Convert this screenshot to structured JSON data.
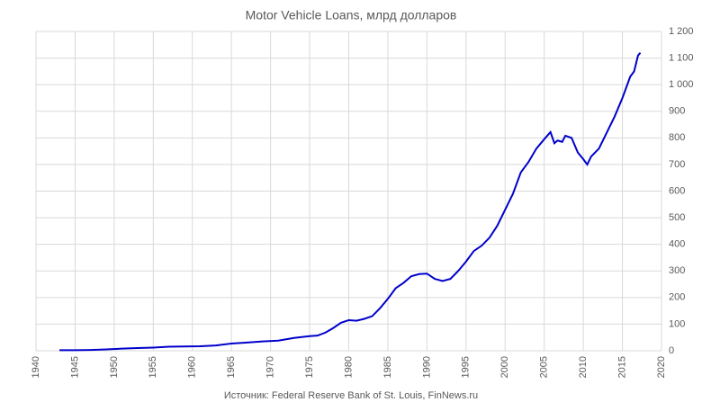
{
  "chart_data": {
    "type": "line",
    "title": "Motor Vehicle Loans, млрд долларов",
    "source": "Источник: Federal Reserve Bank of St. Louis, FinNews.ru",
    "series": [
      {
        "name": "Motor Vehicle Loans",
        "color": "#0000cc",
        "x": [
          1943,
          1945,
          1947,
          1949,
          1951,
          1953,
          1955,
          1957,
          1959,
          1961,
          1963,
          1965,
          1967,
          1969,
          1971,
          1973,
          1975,
          1976,
          1977,
          1978,
          1979,
          1980,
          1981,
          1982,
          1983,
          1984,
          1985,
          1986,
          1987,
          1988,
          1989,
          1990,
          1991,
          1992,
          1993,
          1994,
          1995,
          1996,
          1997,
          1998,
          1999,
          2000,
          2001,
          2002,
          2003,
          2004,
          2005,
          2005.8,
          2006.3,
          2006.7,
          2007.3,
          2007.7,
          2008.5,
          2009.3,
          2010,
          2010.5,
          2011,
          2012,
          2013,
          2014,
          2015,
          2016,
          2016.5,
          2017,
          2017.3
        ],
        "values": [
          2,
          2,
          3,
          5,
          8,
          10,
          12,
          15,
          16,
          17,
          20,
          27,
          31,
          35,
          38,
          48,
          55,
          57,
          68,
          85,
          105,
          115,
          113,
          120,
          130,
          160,
          195,
          235,
          255,
          280,
          288,
          290,
          270,
          262,
          270,
          300,
          335,
          375,
          395,
          425,
          470,
          530,
          590,
          670,
          710,
          760,
          795,
          822,
          780,
          790,
          785,
          808,
          800,
          745,
          720,
          700,
          730,
          760,
          820,
          880,
          950,
          1030,
          1050,
          1110,
          1120
        ]
      }
    ],
    "xlim": [
      1940,
      2020
    ],
    "xticks": [
      1940,
      1945,
      1950,
      1955,
      1960,
      1965,
      1970,
      1975,
      1980,
      1985,
      1990,
      1995,
      2000,
      2005,
      2010,
      2015,
      2020
    ],
    "ylim": [
      0,
      1200
    ],
    "yticks": [
      0,
      100,
      200,
      300,
      400,
      500,
      600,
      700,
      800,
      900,
      {
        "value": 1000,
        "label": "1 000"
      },
      {
        "value": 1100,
        "label": "1 100"
      },
      {
        "value": 1200,
        "label": "1 200"
      }
    ],
    "grid": true
  }
}
